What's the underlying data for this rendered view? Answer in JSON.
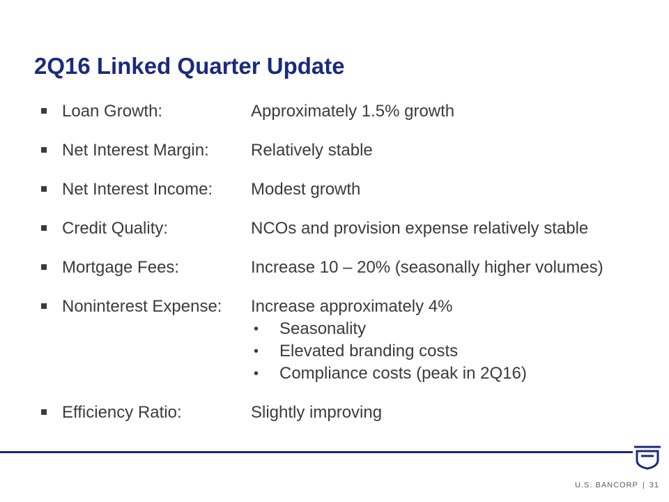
{
  "slide": {
    "title": "2Q16 Linked Quarter Update",
    "items": [
      {
        "label": "Loan Growth:",
        "value": "Approximately 1.5% growth"
      },
      {
        "label": "Net Interest Margin:",
        "value": "Relatively stable"
      },
      {
        "label": "Net Interest Income:",
        "value": "Modest growth"
      },
      {
        "label": "Credit Quality:",
        "value": "NCOs and provision expense relatively stable"
      },
      {
        "label": "Mortgage Fees:",
        "value": "Increase 10 – 20% (seasonally higher volumes)"
      },
      {
        "label": "Noninterest Expense:",
        "value": "Increase approximately 4%"
      },
      {
        "label": "Efficiency Ratio:",
        "value": "Slightly improving"
      }
    ],
    "subitems": [
      "Seasonality",
      "Elevated branding costs",
      "Compliance costs (peak in 2Q16)"
    ],
    "sub_bullet": "•"
  },
  "footer": {
    "company": "U.S. BANCORP",
    "separator": "|",
    "page_number": "31"
  },
  "colors": {
    "brand_navy": "#1b2a7a",
    "body_text": "#3b3b3b"
  },
  "icons": {
    "logo": "usbank-shield-icon"
  }
}
